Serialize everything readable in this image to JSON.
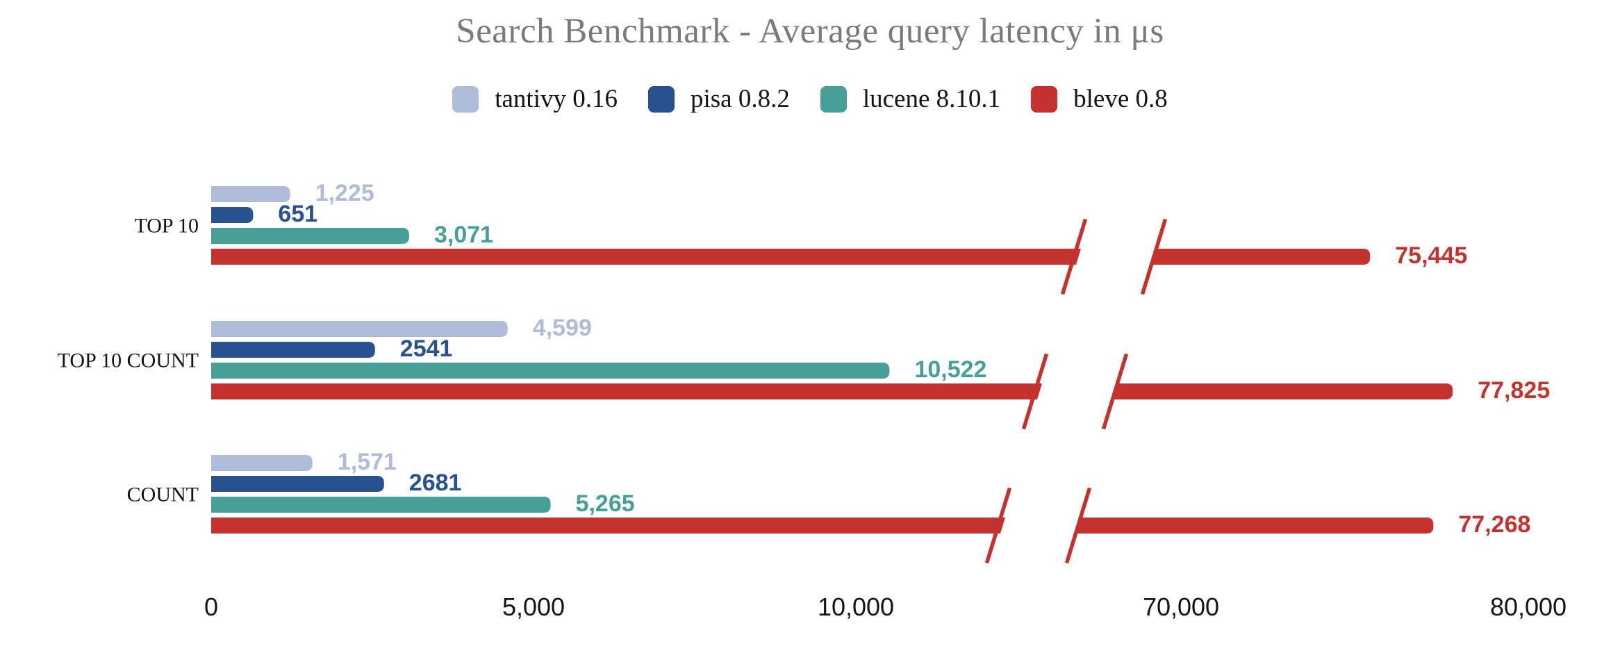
{
  "chart_data": {
    "type": "bar",
    "orientation": "horizontal",
    "title": "Search Benchmark - Average query latency in μs",
    "categories": [
      "TOP 10",
      "TOP 10 COUNT",
      "COUNT"
    ],
    "series": [
      {
        "name": "tantivy 0.16",
        "color": "#aebcd9",
        "values": [
          1225,
          4599,
          1571
        ],
        "value_labels": [
          "1,225",
          "4,599",
          "1,571"
        ]
      },
      {
        "name": "pisa 0.8.2",
        "color": "#27518f",
        "values": [
          651,
          2541,
          2681
        ],
        "value_labels": [
          "651",
          "2541",
          "2681"
        ]
      },
      {
        "name": "lucene 8.10.1",
        "color": "#47a097",
        "values": [
          3071,
          10522,
          5265
        ],
        "value_labels": [
          "3,071",
          "10,522",
          "5,265"
        ]
      },
      {
        "name": "bleve 0.8",
        "color": "#c5312d",
        "values": [
          75445,
          77825,
          77268
        ],
        "value_labels": [
          "75,445",
          "77,825",
          "77,268"
        ]
      }
    ],
    "x_axis": {
      "axis_break": true,
      "ticks": [
        {
          "value": 0,
          "label": "0"
        },
        {
          "value": 5000,
          "label": "5,000"
        },
        {
          "value": 10000,
          "label": "10,000"
        },
        {
          "value": 70000,
          "label": "70,000"
        },
        {
          "value": 80000,
          "label": "80,000"
        }
      ]
    },
    "legend_position": "top",
    "grid": false,
    "xlim_left_segment": [
      0,
      12500
    ],
    "xlim_right_segment": [
      65000,
      80000
    ]
  },
  "styles": {
    "background": "#ffffff",
    "title_color": "#7a7a7a",
    "text_color": "#141414"
  }
}
